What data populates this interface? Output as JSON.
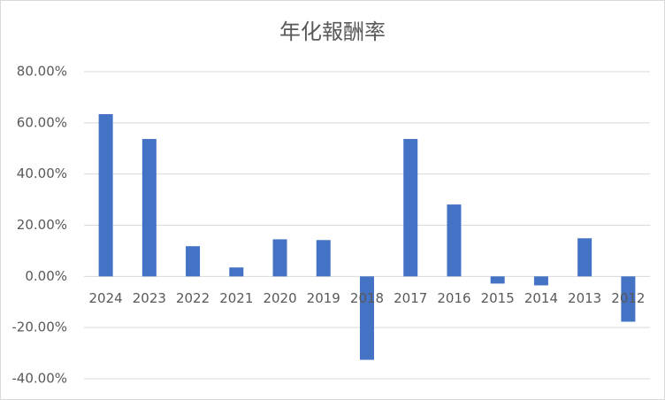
{
  "chart_data": {
    "type": "bar",
    "title": "年化報酬率",
    "categories": [
      "2024",
      "2023",
      "2022",
      "2021",
      "2020",
      "2019",
      "2018",
      "2017",
      "2016",
      "2015",
      "2014",
      "2013",
      "2012"
    ],
    "values": [
      63.4,
      53.7,
      11.8,
      3.5,
      14.5,
      14.2,
      -32.6,
      53.7,
      28.1,
      -2.8,
      -3.5,
      14.9,
      -17.7
    ],
    "color": "#4472c4",
    "ylim": [
      -40,
      80
    ],
    "yticks": [
      {
        "value": -40,
        "label": "-40.00%"
      },
      {
        "value": -20,
        "label": "-20.00%"
      },
      {
        "value": 0,
        "label": "0.00%"
      },
      {
        "value": 20,
        "label": "20.00%"
      },
      {
        "value": 40,
        "label": "40.00%"
      },
      {
        "value": 60,
        "label": "60.00%"
      },
      {
        "value": 80,
        "label": "80.00%"
      }
    ],
    "grid": true
  }
}
